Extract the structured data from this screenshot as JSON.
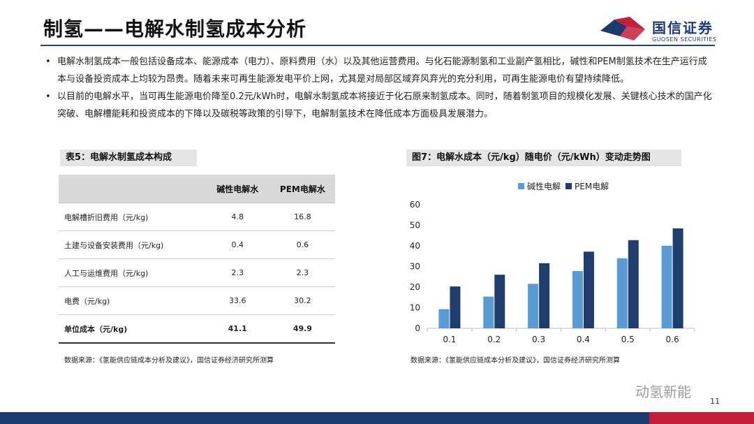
{
  "header": {
    "title": "制氢——电解水制氢成本分析",
    "logo_text": "国信证券",
    "logo_sub": "GUOSEN SECURITIES"
  },
  "bullets": [
    "电解水制氢成本一般包括设备成本、能源成本（电力）、原料费用（水）以及其他运营费用。与化石能源制氢和工业副产氢相比，碱性和PEM制氢技术在生产运行成本与设备投资成本上均较为昂贵。随着未来可再生能源发电平价上网，尤其是对局部区域弃风弃光的充分利用，可再生能源电价有望持续降低。",
    "以目前的电解水平，当可再生能源电价降至0.2元/kWh时，电解水制氢成本将接近于化石原来制氢成本。同时，随着制氢项目的规模化发展、关键核心技术的国产化突破、电解槽能耗和投资成本的下降以及碳税等政策的引导下，电解制氢技术在降低成本方面极具发展潜力。"
  ],
  "table": {
    "caption": "表5：电解水制氢成本构成",
    "headers": [
      "",
      "碱性电解水",
      "PEM电解水"
    ],
    "rows": [
      {
        "label": "电解槽折旧费用（元/kg)",
        "alk": "4.8",
        "pem": "16.8"
      },
      {
        "label": "土建与设备安装费用（元/kg)",
        "alk": "0.4",
        "pem": "0.6"
      },
      {
        "label": "人工与运维费用（元/kg)",
        "alk": "2.3",
        "pem": "2.3"
      },
      {
        "label": "电费（元/kg)",
        "alk": "33.6",
        "pem": "30.2"
      }
    ],
    "total": {
      "label": "单位成本（元/kg)",
      "alk": "41.1",
      "pem": "49.9"
    },
    "source": "数据来源：《氢能供应链成本分析及建议》，国信证券经济研究所测算"
  },
  "chart_caption": "图7：电解水成本（元/kg）随电价（元/kWh）变动走势图",
  "chart_source": "数据来源：《氢能供应链成本分析及建议》，国信证券经济研究所测算",
  "chart_data": {
    "type": "bar",
    "categories": [
      "0.1",
      "0.2",
      "0.3",
      "0.4",
      "0.5",
      "0.6"
    ],
    "series": [
      {
        "name": "碱性电解",
        "values": [
          9.3,
          15.4,
          21.6,
          27.8,
          34.0,
          40.1
        ],
        "color": "#5b9bd5"
      },
      {
        "name": "PEM电解",
        "values": [
          20.3,
          26.0,
          31.6,
          37.2,
          42.8,
          48.5
        ],
        "color": "#1f3e6e"
      }
    ],
    "ylim": [
      0,
      60
    ],
    "yticks": [
      "0",
      "10",
      "20",
      "30",
      "40",
      "50",
      "60"
    ],
    "legend_position": "top-center",
    "grid": false
  },
  "watermark": "动氢新能",
  "page_number": "11",
  "colors": {
    "brand_blue": "#1b3a6e",
    "brand_red": "#c41e3a"
  }
}
